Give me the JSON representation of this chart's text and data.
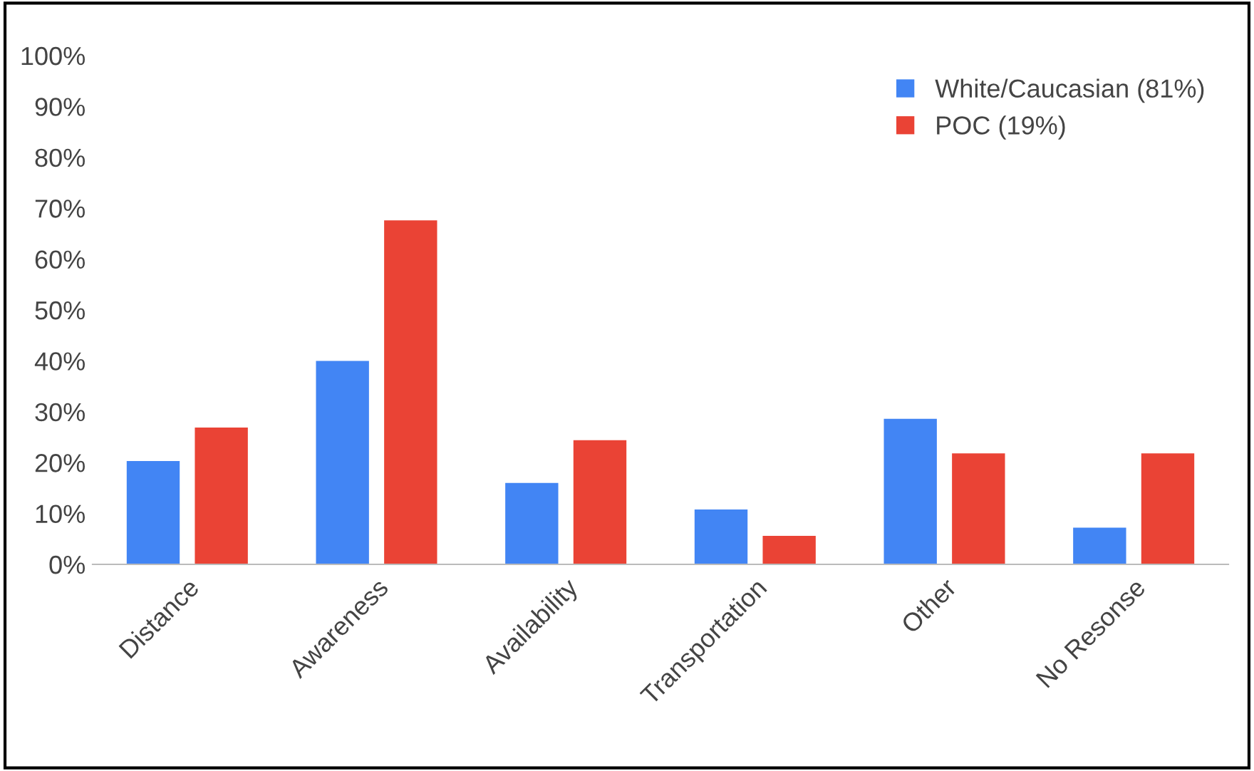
{
  "chart_data": {
    "type": "bar",
    "categories": [
      "Distance",
      "Awareness",
      "Availability",
      "Transportation",
      "Other",
      "No Resonse"
    ],
    "series": [
      {
        "name": "White/Caucasian (81%)",
        "color": "#4285f4",
        "values": [
          20.3,
          40,
          16,
          10.8,
          28.6,
          7.2
        ]
      },
      {
        "name": "POC (19%)",
        "color": "#ea4335",
        "values": [
          26.9,
          67.6,
          24.4,
          5.6,
          21.8,
          21.8
        ]
      }
    ],
    "ylim": [
      0,
      100
    ],
    "yticks": [
      {
        "value": 0,
        "label": "0%"
      },
      {
        "value": 10,
        "label": "10%"
      },
      {
        "value": 20,
        "label": "20%"
      },
      {
        "value": 30,
        "label": "30%"
      },
      {
        "value": 40,
        "label": "40%"
      },
      {
        "value": 50,
        "label": "50%"
      },
      {
        "value": 60,
        "label": "60%"
      },
      {
        "value": 70,
        "label": "70%"
      },
      {
        "value": 80,
        "label": "80%"
      },
      {
        "value": 90,
        "label": "90%"
      },
      {
        "value": 100,
        "label": "100%"
      }
    ],
    "grid": false,
    "legend": "top right"
  }
}
